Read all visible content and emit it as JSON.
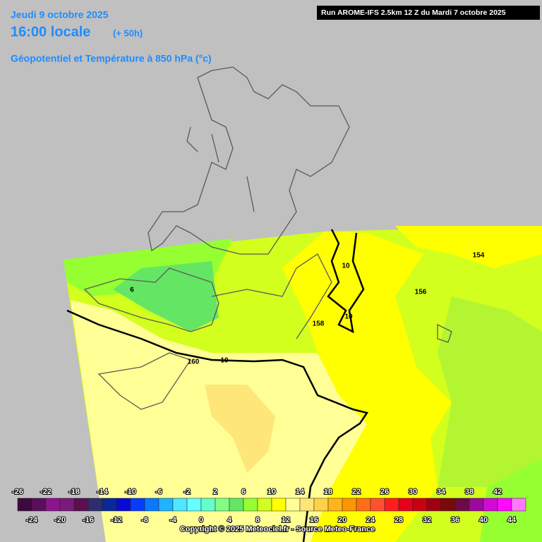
{
  "header": {
    "date": "Jeudi 9 octobre 2025",
    "time": "16:00 locale",
    "lead": "(+ 50h)",
    "subtitle": "Géopotentiel et Température à 850 hPa (°c)"
  },
  "run_info": "Run AROME-IFS 2.5km 12 Z du Mardi 7 octobre 2025",
  "contour_labels": [
    "154",
    "156",
    "158",
    "160",
    "10",
    "10",
    "10",
    "6"
  ],
  "scale": {
    "colors": [
      "#3c0a3c",
      "#5a0f5a",
      "#8c148c",
      "#7a1a7a",
      "#5a0f50",
      "#2e2e6e",
      "#0a2896",
      "#0a0ad2",
      "#0a3cff",
      "#0a78ff",
      "#1eb4ff",
      "#50e6ff",
      "#64ffff",
      "#64ffc8",
      "#82ff82",
      "#64e664",
      "#96ff32",
      "#d2ff1e",
      "#ffff00",
      "#ffff96",
      "#ffe678",
      "#ffd246",
      "#ffb41e",
      "#ff9600",
      "#ff6e14",
      "#ff5032",
      "#ff1e1e",
      "#e6001e",
      "#c80014",
      "#a00014",
      "#780a0a",
      "#6e0a46",
      "#9b0a9b",
      "#d20ad2",
      "#ff0aff",
      "#ff78ff"
    ],
    "top_labels": [
      -26,
      -22,
      -18,
      -14,
      -10,
      -6,
      -2,
      2,
      6,
      10,
      14,
      18,
      22,
      26,
      30,
      34,
      38,
      42
    ],
    "bottom_labels": [
      -24,
      -20,
      -16,
      -12,
      -8,
      -4,
      0,
      4,
      8,
      12,
      16,
      20,
      24,
      28,
      32,
      36,
      40,
      44
    ]
  },
  "copyright": "Copyright © 2025 Meteociel.fr - Source Meteo-France"
}
